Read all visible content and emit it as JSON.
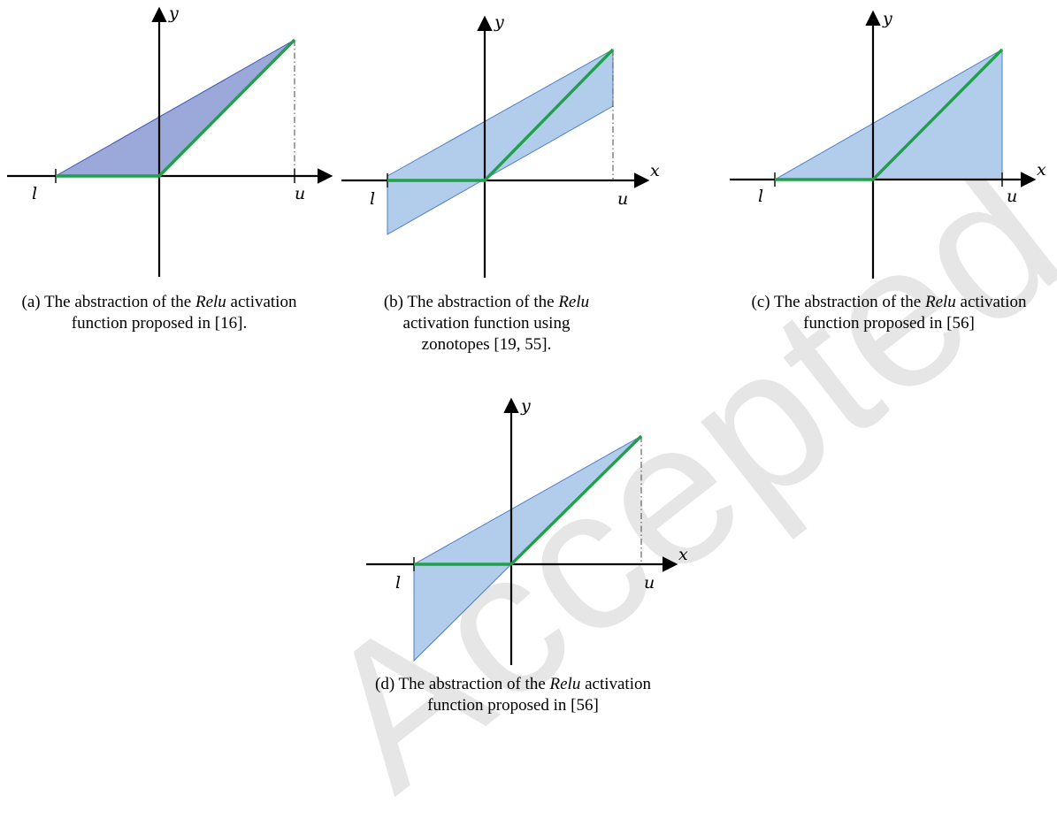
{
  "watermark": "Accepted",
  "labels": {
    "x": "x",
    "y": "y",
    "l": "l",
    "u": "u"
  },
  "panels": [
    {
      "id": "a",
      "caption_prefix": "(a) The abstraction of the ",
      "caption_fn": "Relu",
      "caption_suffix": " activation function proposed in [16]."
    },
    {
      "id": "b",
      "caption_prefix": "(b) The abstraction of the ",
      "caption_fn": "Relu",
      "caption_suffix": " activation function using zonotopes [19, 55]."
    },
    {
      "id": "c",
      "caption_prefix": "(c) The abstraction of the ",
      "caption_fn": "Relu",
      "caption_suffix": " activation function proposed in [56]"
    },
    {
      "id": "d",
      "caption_prefix": "(d) The abstraction of the ",
      "caption_fn": "Relu",
      "caption_suffix": " activation function proposed in [56]"
    }
  ],
  "colors": {
    "relu_line": "#20a04a",
    "region_a": "#9aa9da",
    "region_bcd": "#b2cdec"
  }
}
